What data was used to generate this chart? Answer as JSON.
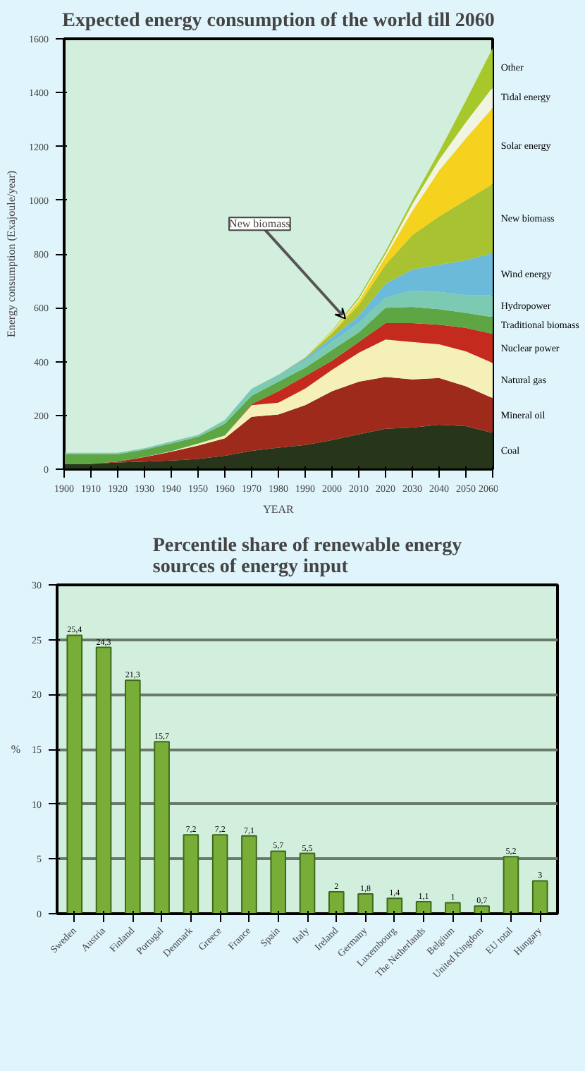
{
  "chart_data": [
    {
      "type": "area",
      "stacked": true,
      "title": "Expected energy consumption of the world till 2060",
      "xlabel": "YEAR",
      "ylabel": "Energy consumption (Exajoule/year)",
      "legend": "right",
      "x": [
        1900,
        1910,
        1920,
        1930,
        1940,
        1950,
        1960,
        1970,
        1980,
        1990,
        2000,
        2010,
        2020,
        2030,
        2040,
        2050,
        2060
      ],
      "xlim": [
        1900,
        2060
      ],
      "xticks": [
        1900,
        1910,
        1920,
        1930,
        1940,
        1950,
        1960,
        1970,
        1980,
        1990,
        2000,
        2010,
        2020,
        2030,
        2040,
        2050,
        2060
      ],
      "ylim": [
        0,
        1600
      ],
      "yticks": [
        0,
        200,
        400,
        600,
        800,
        1000,
        1200,
        1400,
        1600
      ],
      "series": [
        {
          "name": "Coal",
          "color": "#27361a",
          "values": [
            20,
            20,
            25,
            28,
            32,
            38,
            50,
            68,
            80,
            90,
            108,
            130,
            150,
            155,
            165,
            160,
            135
          ]
        },
        {
          "name": "Mineral oil",
          "color": "#9e2a1c",
          "values": [
            0,
            0,
            3,
            17,
            33,
            50,
            65,
            127,
            123,
            148,
            182,
            195,
            193,
            179,
            174,
            148,
            129
          ]
        },
        {
          "name": "Natural gas",
          "color": "#f5f0b8",
          "values": [
            0,
            0,
            0,
            1,
            2,
            7,
            10,
            43,
            44,
            62,
            79,
            108,
            139,
            139,
            125,
            130,
            131
          ]
        },
        {
          "name": "Nuclear power",
          "color": "#c42a1e",
          "values": [
            0,
            0,
            0,
            0,
            0,
            0,
            0,
            4,
            43,
            46,
            34,
            40,
            61,
            70,
            73,
            87,
            108
          ]
        },
        {
          "name": "Traditional biomass",
          "color": "#5ea544",
          "values": [
            36,
            36,
            28,
            27,
            29,
            25,
            44,
            31,
            35,
            31,
            40,
            35,
            57,
            60,
            58,
            56,
            62
          ]
        },
        {
          "name": "Hydropower",
          "color": "#7ccab2",
          "values": [
            5,
            5,
            5,
            5,
            7,
            7,
            14,
            26,
            26,
            26,
            30,
            35,
            38,
            61,
            64,
            66,
            82
          ]
        },
        {
          "name": "Wind energy",
          "color": "#6cbada",
          "values": [
            0,
            0,
            0,
            0,
            0,
            0,
            0,
            0,
            0,
            9,
            17,
            26,
            52,
            78,
            101,
            130,
            156
          ]
        },
        {
          "name": "New biomass",
          "color": "#a9c232",
          "values": [
            0,
            0,
            0,
            0,
            0,
            0,
            0,
            0,
            0,
            3,
            15,
            41,
            70,
            128,
            180,
            223,
            257
          ]
        },
        {
          "name": "Solar energy",
          "color": "#f5d21e",
          "values": [
            0,
            0,
            0,
            0,
            0,
            0,
            0,
            0,
            0,
            0,
            5,
            15,
            30,
            90,
            170,
            230,
            283
          ]
        },
        {
          "name": "Tidal energy",
          "color": "#f2f4e2",
          "values": [
            0,
            0,
            0,
            0,
            0,
            0,
            0,
            0,
            0,
            0,
            2,
            7,
            10,
            25,
            40,
            60,
            77
          ]
        },
        {
          "name": "Other",
          "color": "#a6c82a",
          "values": [
            0,
            0,
            0,
            0,
            0,
            0,
            0,
            0,
            0,
            0,
            3,
            8,
            10,
            15,
            30,
            80,
            145
          ]
        }
      ],
      "annotations": [
        {
          "text": "New biomass",
          "x": 2005,
          "y": 560
        }
      ]
    },
    {
      "type": "bar",
      "title": "Percentile share of renewable energy\nsources of energy input",
      "ylabel": "%",
      "color": "#78ae38",
      "grid": "y",
      "categories": [
        "Sweden",
        "Austria",
        "Finland",
        "Portugal",
        "Denmark",
        "Greece",
        "France",
        "Spain",
        "Italy",
        "Ireland",
        "Germany",
        "Luxembourg",
        "The Netherlands",
        "Belgium",
        "United Kingdom",
        "EU total",
        "Hungary"
      ],
      "values": [
        25.4,
        24.3,
        21.3,
        15.7,
        7.2,
        7.2,
        7.1,
        5.7,
        5.5,
        2,
        1.8,
        1.4,
        1.1,
        1,
        0.7,
        5.2,
        3
      ],
      "value_labels": [
        "25,4",
        "24,3",
        "21,3",
        "15,7",
        "7,2",
        "7,2",
        "7,1",
        "5,7",
        "5,5",
        "2",
        "1,8",
        "1,4",
        "1,1",
        "1",
        "0,7",
        "5,2",
        "3"
      ],
      "ylim": [
        0,
        30
      ],
      "yticks": [
        0,
        5,
        10,
        15,
        20,
        25,
        30
      ]
    }
  ]
}
